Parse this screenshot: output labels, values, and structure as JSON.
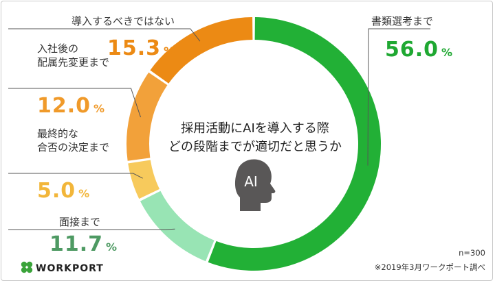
{
  "chart_data": {
    "type": "pie",
    "title_lines": [
      "採用活動にAIを導入する際",
      "どの段階までが適切だと思うか"
    ],
    "unit": "%",
    "slices": [
      {
        "label_lines": [
          "書類選考まで"
        ],
        "value": 56.0,
        "value_text": "56.0",
        "color": "#22b036",
        "text_color": "#1fa832"
      },
      {
        "label_lines": [
          "面接まで"
        ],
        "value": 11.7,
        "value_text": "11.7",
        "color": "#98e4b4",
        "text_color": "#4e9a63"
      },
      {
        "label_lines": [
          "最終的な",
          "合否の決定まで"
        ],
        "value": 5.0,
        "value_text": "5.0",
        "color": "#f7ca5c",
        "text_color": "#f2b63a"
      },
      {
        "label_lines": [
          "入社後の",
          "配属先変更まで"
        ],
        "value": 12.0,
        "value_text": "12.0",
        "color": "#f2a13a",
        "text_color": "#f09a2a"
      },
      {
        "label_lines": [
          "導入するべきではない"
        ],
        "value": 15.3,
        "value_text": "15.3",
        "color": "#ec8a14",
        "text_color": "#ec8a14"
      }
    ]
  },
  "center_icon": {
    "label": "AI",
    "icon": "head-silhouette-icon",
    "color": "#595757"
  },
  "footer": {
    "sample_size": "n=300",
    "source": "※2019年3月ワークポート調べ"
  },
  "logo": {
    "text": "WORKPORT",
    "icon": "clover-icon",
    "color": "#3aa33a"
  }
}
